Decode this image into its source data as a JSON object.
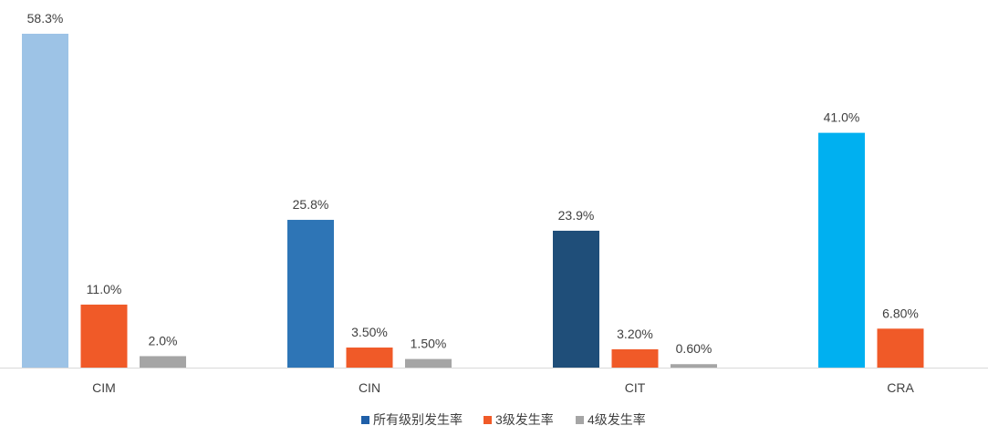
{
  "chart_data": {
    "type": "bar",
    "title": "",
    "xlabel": "",
    "ylabel": "",
    "ylim": [
      0,
      60
    ],
    "grid": false,
    "legend_position": "bottom",
    "categories": [
      "CIM",
      "CIN",
      "CIT",
      "CRA"
    ],
    "series": [
      {
        "name": "所有级别发生率",
        "legend_color": "#1f5fa8",
        "values": [
          58.3,
          25.8,
          23.9,
          41.0
        ],
        "labels": [
          "58.3%",
          "25.8%",
          "23.9%",
          "41.0%"
        ],
        "colors": [
          "#9dc3e6",
          "#2e75b6",
          "#1f4e79",
          "#00b0f0"
        ]
      },
      {
        "name": "3级发生率",
        "legend_color": "#f05a28",
        "values": [
          11.0,
          3.5,
          3.2,
          6.8
        ],
        "labels": [
          "11.0%",
          "3.50%",
          "3.20%",
          "6.80%"
        ],
        "colors": [
          "#f05a28",
          "#f05a28",
          "#f05a28",
          "#f05a28"
        ]
      },
      {
        "name": "4级发生率",
        "legend_color": "#a5a5a5",
        "values": [
          2.0,
          1.5,
          0.6,
          null
        ],
        "labels": [
          "2.0%",
          "1.50%",
          "0.60%",
          null
        ],
        "colors": [
          "#a5a5a5",
          "#a5a5a5",
          "#a5a5a5",
          "#a5a5a5"
        ]
      }
    ]
  }
}
